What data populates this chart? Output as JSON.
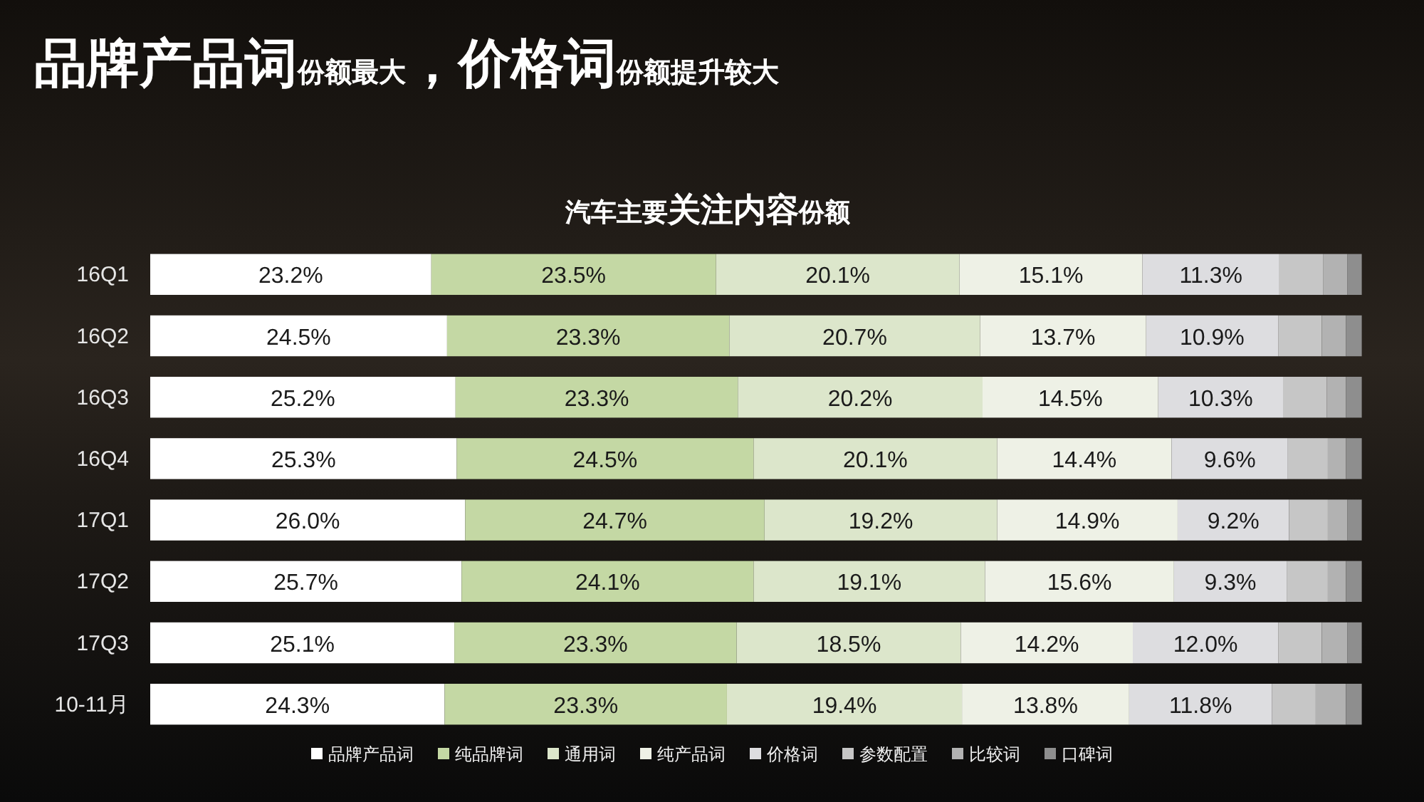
{
  "chart_data": {
    "type": "bar",
    "orientation": "horizontal",
    "stacked": true,
    "title": "品牌产品词份额最大，价格词份额提升较大",
    "subtitle": "汽车主要关注内容份额",
    "legend": "bottom",
    "categories": [
      "16Q1",
      "16Q2",
      "16Q3",
      "16Q4",
      "17Q1",
      "17Q2",
      "17Q3",
      "10-11月"
    ],
    "series": [
      {
        "name": "品牌产品词",
        "color": "#ffffff",
        "values": [
          23.2,
          24.5,
          25.2,
          25.3,
          26.0,
          25.7,
          25.1,
          24.3
        ],
        "value_labels": [
          "23.2%",
          "24.5%",
          "25.2%",
          "25.3%",
          "26.0%",
          "25.7%",
          "25.1%",
          "24.3%"
        ]
      },
      {
        "name": "纯品牌词",
        "color": "#c4d8a4",
        "values": [
          23.5,
          23.3,
          23.3,
          24.5,
          24.7,
          24.1,
          23.3,
          23.3
        ],
        "value_labels": [
          "23.5%",
          "23.3%",
          "23.3%",
          "24.5%",
          "24.7%",
          "24.1%",
          "23.3%",
          "23.3%"
        ]
      },
      {
        "name": "通用词",
        "color": "#dce6cb",
        "values": [
          20.1,
          20.7,
          20.2,
          20.1,
          19.2,
          19.1,
          18.5,
          19.4
        ],
        "value_labels": [
          "20.1%",
          "20.7%",
          "20.2%",
          "20.1%",
          "19.2%",
          "19.1%",
          "18.5%",
          "19.4%"
        ]
      },
      {
        "name": "纯产品词",
        "color": "#eef1e6",
        "values": [
          15.1,
          13.7,
          14.5,
          14.4,
          14.9,
          15.6,
          14.2,
          13.8
        ],
        "value_labels": [
          "15.1%",
          "13.7%",
          "14.5%",
          "14.4%",
          "14.9%",
          "15.6%",
          "14.2%",
          "13.8%"
        ]
      },
      {
        "name": "价格词",
        "color": "#dddde0",
        "values": [
          11.3,
          10.9,
          10.3,
          9.6,
          9.2,
          9.3,
          12.0,
          11.8
        ],
        "value_labels": [
          "11.3%",
          "10.9%",
          "10.3%",
          "9.6%",
          "9.2%",
          "9.3%",
          "12.0%",
          "11.8%"
        ]
      },
      {
        "name": "参数配置",
        "color": "#c6c6c6",
        "values": [
          3.6,
          3.6,
          3.6,
          3.3,
          3.2,
          3.4,
          3.6,
          3.6
        ]
      },
      {
        "name": "比较词",
        "color": "#b2b2b2",
        "values": [
          2.0,
          2.0,
          1.6,
          1.5,
          1.6,
          1.5,
          2.1,
          2.5
        ]
      },
      {
        "name": "口碑词",
        "color": "#8e8e8e",
        "values": [
          1.2,
          1.3,
          1.3,
          1.3,
          1.2,
          1.3,
          1.2,
          1.3
        ]
      }
    ]
  }
}
